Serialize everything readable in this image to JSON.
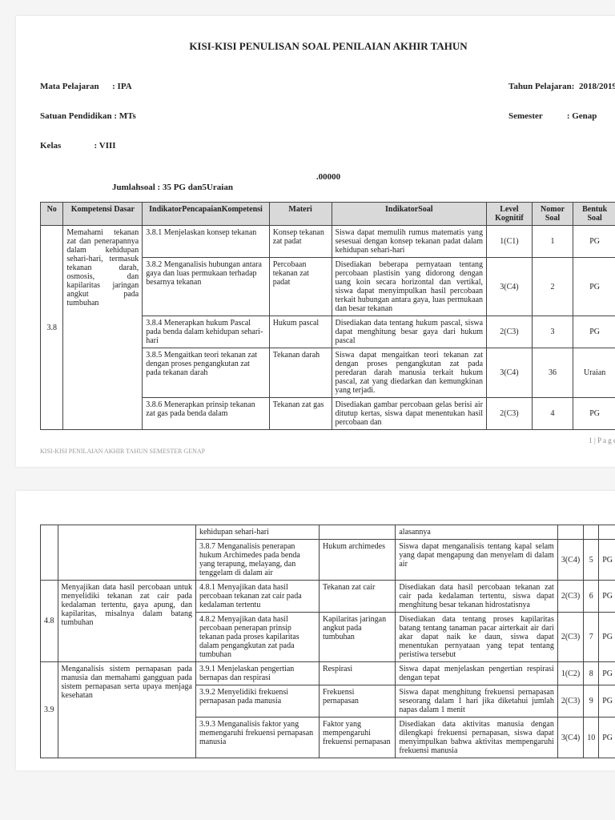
{
  "title": "KISI-KISI PENULISAN SOAL PENILAIAN AKHIR TAHUN",
  "meta": {
    "mata_pelajaran_label": "Mata Pelajaran",
    "mata_pelajaran": ": IPA",
    "satuan_label": "Satuan Pendidikan",
    "satuan": ": MTs",
    "kelas_label": "Kelas",
    "kelas": ": VIII",
    "tahun_label": "Tahun Pelajaran:",
    "tahun": "2018/2019",
    "semester_label": "Semester",
    "semester": ": Genap",
    "extra": ".00000",
    "jumlah_label": "Jumlahsoal",
    "jumlah": ": 35 PG dan5Uraian"
  },
  "headers": {
    "no": "No",
    "kd": "Kompetensi Dasar",
    "ipk": "IndikatorPencapaianKompetensi",
    "materi": "Materi",
    "is": "IndikatorSoal",
    "lk": "Level Kognitif",
    "ns": "Nomor Soal",
    "bs": "Bentuk Soal"
  },
  "kd38": "Memahami tekanan zat dan penerapannya dalam kehidupan sehari-hari, termasuk tekanan darah, osmosis, dan kapilaritas jaringan angkut pada tumbuhan",
  "rows1": [
    {
      "ipk": "3.8.1 Menjelaskan konsep tekanan",
      "materi": "Konsep tekanan zat padat",
      "is": "Siswa dapat memulih rumus matematis yang sesesuai dengan konsep tekanan padat dalam kehidupan sehari-hari",
      "lk": "1(C1)",
      "ns": "1",
      "bs": "PG"
    },
    {
      "ipk": "3.8.2 Menganalisis hubungan antara gaya dan luas permukaan terhadap besarnya tekanan",
      "materi": "Percobaan tekanan zat padat",
      "is": "Disediakan beberapa pernyataan tentang percobaan plastisin yang didorong dengan uang koin secara horizontal dan vertikal, siswa dapat menyimpulkan hasil percobaan terkait hubungan antara gaya, luas permukaan dan besar tekanan",
      "lk": "3(C4)",
      "ns": "2",
      "bs": "PG"
    },
    {
      "ipk": "3.8.4 Menerapkan hukum Pascal pada benda dalam kehidupan sehari-hari",
      "materi": "Hukum pascal",
      "is": "Disediakan data tentang hukum pascal, siswa dapat menghitung besar gaya dari hukum pascal",
      "lk": "2(C3)",
      "ns": "3",
      "bs": "PG"
    },
    {
      "ipk": "3.8.5 Mengaitkan teori tekanan zat dengan proses pengangkutan zat pada tekanan darah",
      "materi": "Tekanan darah",
      "is": "Siswa dapat mengaitkan teori tekanan zat dengan proses pengangkutan zat pada peredaran darah manusia terkait hukum pascal, zat yang diedarkan dan kemungkinan yang terjadi.",
      "lk": "3(C4)",
      "ns": "36",
      "bs": "Uraian"
    },
    {
      "ipk": "3.8.6 Menerapkan prinsip tekanan zat gas pada benda dalam",
      "materi": "Tekanan zat gas",
      "is": "Disediakan gambar percobaan gelas berisi air ditutup kertas, siswa dapat menentukan hasil percobaan dan",
      "lk": "2(C3)",
      "ns": "4",
      "bs": "PG"
    }
  ],
  "page1_footer_right": "1 | P a g e",
  "page1_footer_left": "KISI-KISI PENILAIAN AKHIR TAHUN SEMESTER GENAP",
  "rows2_top": {
    "ipk": "kehidupan sehari-hari",
    "is": "alasannya"
  },
  "row_387": {
    "ipk": "3.8.7 Menganalisis penerapan hukum Archimedes pada benda yang terapung, melayang, dan tenggelam di dalam air",
    "materi": "Hukum archimedes",
    "is": "Siswa dapat menganalisis tentang kapal selam yang dapat mengapung dan menyelam di dalam air",
    "lk": "3(C4)",
    "ns": "5",
    "bs": "PG"
  },
  "kd48": "Menyajikan data hasil percobaan untuk menyelidiki tekanan zat cair pada kedalaman tertentu, gaya apung, dan kapilaritas, misalnya dalam batang tumbuhan",
  "row_481": {
    "ipk": "4.8.1 Menyajikan data hasil percobaan tekanan zat cair pada kedalaman tertentu",
    "materi": "Tekanan zat cair",
    "is": "Disediakan data hasil percobaan tekanan zat cair pada kedalaman tertentu, siswa dapat menghitung besar tekanan hidrostatisnya",
    "lk": "2(C3)",
    "ns": "6",
    "bs": "PG"
  },
  "row_482": {
    "ipk": "4.8.2 Menyajikan data hasil percobaan penerapan prinsip tekanan pada proses kapilaritas dalam pengangkutan zat pada tumbuhan",
    "materi": "Kapilaritas jaringan angkut pada tumbuhan",
    "is": "Disediakan data tentang proses kapilaritas batang tentang tanaman pacar airterkait air dari akar dapat naik ke daun, siswa dapat menentukan pernyataan yang tepat tentang peristiwa tersebut",
    "lk": "2(C3)",
    "ns": "7",
    "bs": "PG"
  },
  "kd39": "Menganalisis sistem pernapasan pada manusia dan memahami gangguan pada sistem pernapasan serta upaya menjaga kesehatan",
  "row_391": {
    "ipk": "3.9.1 Menjelaskan pengertian bernapas dan respirasi",
    "materi": "Respirasi",
    "is": "Siswa dapat menjelaskan pengertian respirasi dengan tepat",
    "lk": "1(C2)",
    "ns": "8",
    "bs": "PG"
  },
  "row_392": {
    "ipk": "3.9.2 Menyelidiki frekuensi pernapasan pada manusia",
    "materi": "Frekuensi pernapasan",
    "is": "Siswa dapat menghitung frekuensi pernapasan seseorang dalam 1 hari jika diketahui jumlah napas dalam 1 menit",
    "lk": "2(C3)",
    "ns": "9",
    "bs": "PG"
  },
  "row_393": {
    "ipk": "3.9.3 Menganalisis faktor yang memengaruhi frekuensi pernapasan manusia",
    "materi": "Faktor yang mempengaruhi frekuensi pernapasan",
    "is": "Disediakan data aktivitas manusia dengan dilengkapi frekuensi pernapasan, siswa dapat menyimpulkan bahwa aktivitas mempengaruhi frekuensi manusia",
    "lk": "3(C4)",
    "ns": "10",
    "bs": "PG"
  }
}
